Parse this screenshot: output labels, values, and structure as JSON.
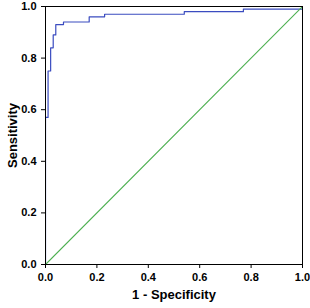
{
  "chart_data": {
    "type": "line",
    "x_label": "1 - Specificity",
    "y_label": "Sensitivity",
    "xlim": [
      0,
      1
    ],
    "ylim": [
      0,
      1
    ],
    "xticks": [
      {
        "value": 0,
        "label": "0.0"
      },
      {
        "value": 0.2,
        "label": "0.2"
      },
      {
        "value": 0.4,
        "label": "0.4"
      },
      {
        "value": 0.6,
        "label": "0.6"
      },
      {
        "value": 0.8,
        "label": "0.8"
      },
      {
        "value": 1,
        "label": "1.0"
      }
    ],
    "yticks": [
      {
        "value": 0,
        "label": "0.0"
      },
      {
        "value": 0.2,
        "label": "0.2"
      },
      {
        "value": 0.4,
        "label": "0.4"
      },
      {
        "value": 0.6,
        "label": "0.6"
      },
      {
        "value": 0.8,
        "label": "0.8"
      },
      {
        "value": 1,
        "label": "1.0"
      }
    ],
    "grid": false,
    "series": [
      {
        "color": "#3b4cc0",
        "x": [
          0,
          0,
          0.01,
          0.01,
          0.02,
          0.02,
          0.03,
          0.03,
          0.04,
          0.04,
          0.07,
          0.07,
          0.17,
          0.17,
          0.23,
          0.23,
          0.54,
          0.54,
          0.77,
          0.77,
          1,
          1
        ],
        "values": [
          0,
          0.57,
          0.57,
          0.75,
          0.75,
          0.84,
          0.84,
          0.89,
          0.89,
          0.93,
          0.93,
          0.94,
          0.94,
          0.96,
          0.96,
          0.97,
          0.97,
          0.98,
          0.98,
          0.99,
          0.99,
          1
        ]
      },
      {
        "color": "#4caf50",
        "x": [
          0,
          1
        ],
        "values": [
          0,
          1
        ]
      }
    ]
  }
}
